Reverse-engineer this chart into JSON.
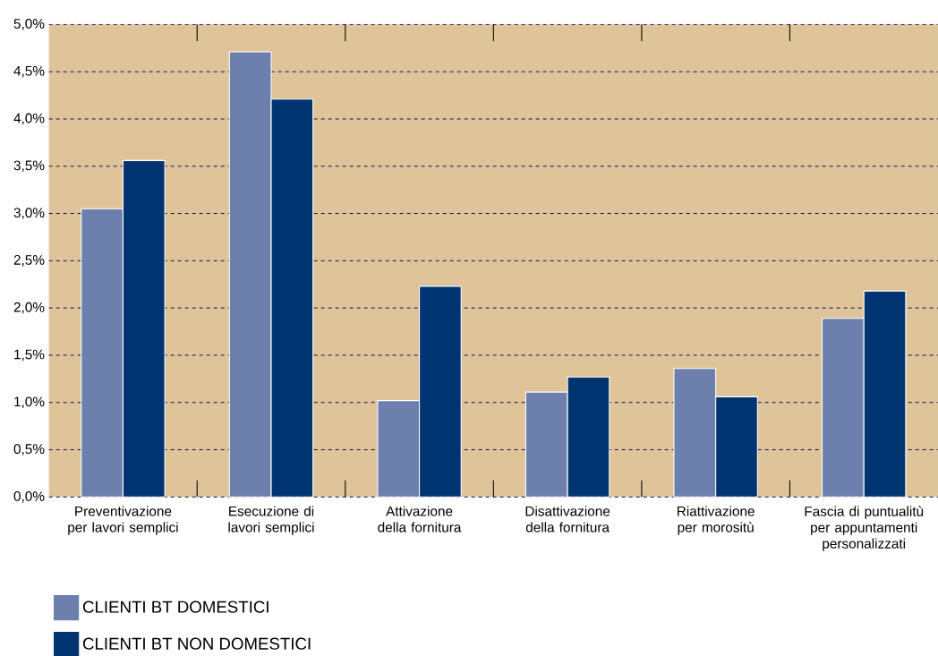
{
  "chart_data": {
    "type": "bar",
    "categories": [
      "Preventivazione per lavori semplici",
      "Esecuzione di lavori semplici",
      "Attivazione della fornitura",
      "Disattivazione della fornitura",
      "Riattivazione per morositù",
      "Fascia di puntualitù per appuntamenti personalizzati"
    ],
    "series": [
      {
        "name": "CLIENTI BT DOMESTICI",
        "color": "#6d7fad",
        "values": [
          3.05,
          4.71,
          1.02,
          1.11,
          1.36,
          1.89
        ]
      },
      {
        "name": "CLIENTI BT NON DOMESTICI",
        "color": "#003471",
        "values": [
          3.56,
          4.21,
          2.23,
          1.27,
          1.06,
          2.18
        ]
      }
    ],
    "ylim": [
      0,
      5
    ],
    "yticks": [
      {
        "value": 0,
        "label": "0,0%"
      },
      {
        "value": 0.5,
        "label": "0,5%"
      },
      {
        "value": 1,
        "label": "1,0%"
      },
      {
        "value": 1.5,
        "label": "1,5%"
      },
      {
        "value": 2,
        "label": "2,0%"
      },
      {
        "value": 2.5,
        "label": "2,5%"
      },
      {
        "value": 3,
        "label": "3,0%"
      },
      {
        "value": 3.5,
        "label": "3,5%"
      },
      {
        "value": 4,
        "label": "4,0%"
      },
      {
        "value": 4.5,
        "label": "4,5%"
      },
      {
        "value": 5,
        "label": "5,0%"
      }
    ],
    "grid": "y",
    "legend": "bottom left"
  }
}
